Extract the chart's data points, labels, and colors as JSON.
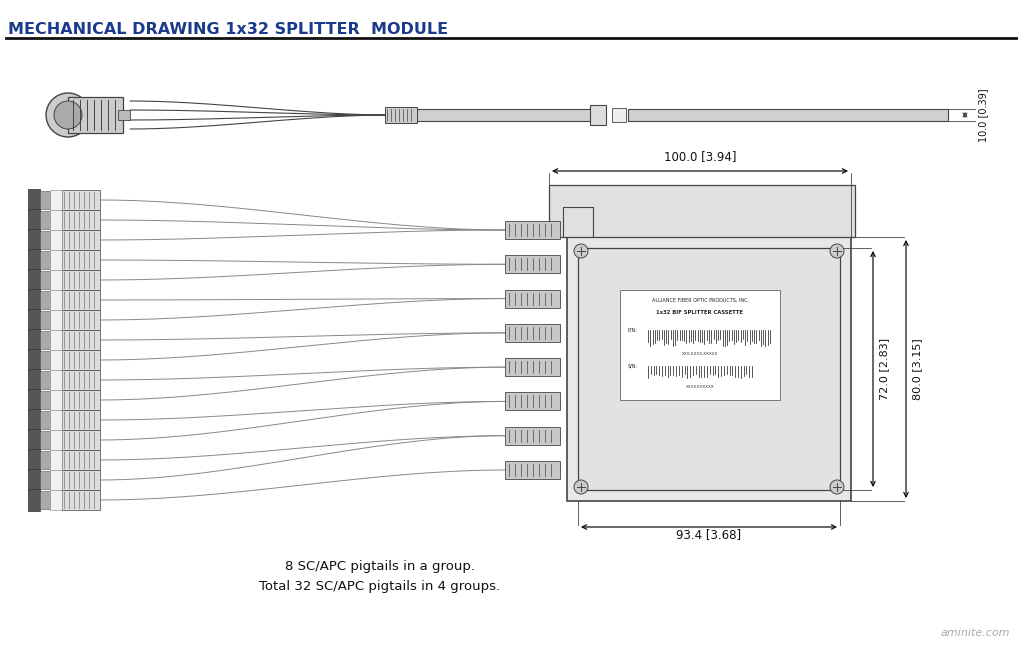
{
  "title": "MECHANICAL DRAWING 1x32 SPLITTER  MODULE",
  "title_color": "#1a3a8c",
  "title_fontsize": 11.5,
  "bg_color": "#ffffff",
  "draw_color": "#444444",
  "dim_color": "#111111",
  "label1": "8 SC/APC pigtails in a group.",
  "label2": "Total 32 SC/APC pigtails in 4 groups.",
  "watermark": "aminite.com",
  "dim_100": "100.0 [3.94]",
  "dim_93": "93.4 [3.68]",
  "dim_72": "72.0 [2.83]",
  "dim_80": "80.0 [3.15]",
  "dim_10": "10.0 [0.39]",
  "cassette_label_line1": "ALLIANCE FIBER OPTIC PRODUCTS, INC.",
  "cassette_label_line2": "1x32 BIF SPLITTER CASSETTE",
  "cassette_pn": "P/N:",
  "cassette_sn": "S/N:",
  "cassette_pn_num": "XXX-XXXX-XXXXX",
  "cassette_sn_num": "XXXXXXXXXX"
}
